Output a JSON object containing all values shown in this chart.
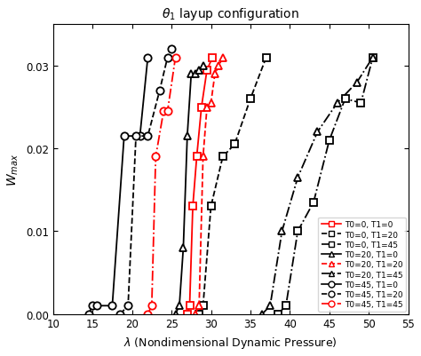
{
  "title": "$\\theta_1$ layup configuration",
  "xlabel": "$\\lambda$ (Nondimensional Dynamic Pressure)",
  "ylabel": "$W_{max}$",
  "xlim": [
    10,
    55
  ],
  "ylim": [
    0,
    0.035
  ],
  "xticks": [
    10,
    15,
    20,
    25,
    30,
    35,
    40,
    45,
    50,
    55
  ],
  "yticks": [
    0,
    0.01,
    0.02,
    0.03
  ],
  "series": [
    {
      "label": "T0=0, T1=0",
      "color": "red",
      "linestyle": "-",
      "marker": "s",
      "x": [
        27.0,
        27.3,
        27.7,
        28.2,
        28.8,
        29.5,
        30.2
      ],
      "y": [
        0.0,
        0.001,
        0.013,
        0.019,
        0.025,
        0.0295,
        0.031
      ]
    },
    {
      "label": "T0=0, T1=20",
      "color": "black",
      "linestyle": "--",
      "marker": "s",
      "x": [
        28.5,
        29.0,
        30.0,
        31.5,
        33.0,
        35.0,
        37.0
      ],
      "y": [
        0.0,
        0.001,
        0.013,
        0.019,
        0.0205,
        0.026,
        0.031
      ]
    },
    {
      "label": "T0=0, T1=45",
      "color": "black",
      "linestyle": "-.",
      "marker": "s",
      "x": [
        38.5,
        39.5,
        41.0,
        43.0,
        45.0,
        47.0,
        49.0,
        50.5
      ],
      "y": [
        0.0,
        0.001,
        0.01,
        0.0135,
        0.021,
        0.026,
        0.0255,
        0.031
      ]
    },
    {
      "label": "T0=20, T1=0",
      "color": "black",
      "linestyle": "-",
      "marker": "^",
      "x": [
        25.5,
        26.0,
        26.5,
        27.0,
        27.5,
        28.0,
        28.5,
        29.0
      ],
      "y": [
        0.0,
        0.001,
        0.008,
        0.0215,
        0.029,
        0.029,
        0.0295,
        0.03
      ]
    },
    {
      "label": "T0=20, T1=20",
      "color": "red",
      "linestyle": "--",
      "marker": "^",
      "x": [
        28.0,
        28.5,
        29.0,
        29.5,
        30.0,
        30.5,
        31.0,
        31.5
      ],
      "y": [
        0.0,
        0.001,
        0.019,
        0.025,
        0.0255,
        0.029,
        0.03,
        0.031
      ]
    },
    {
      "label": "T0=20, T1=45",
      "color": "black",
      "linestyle": "-.",
      "marker": "^",
      "x": [
        36.5,
        37.5,
        39.0,
        41.0,
        43.5,
        46.0,
        48.5,
        50.5
      ],
      "y": [
        0.0,
        0.001,
        0.01,
        0.0165,
        0.022,
        0.0255,
        0.028,
        0.031
      ]
    },
    {
      "label": "T0=45, T1=0",
      "color": "black",
      "linestyle": "-",
      "marker": "o",
      "x": [
        14.5,
        15.0,
        15.5,
        17.5,
        19.0,
        21.0,
        22.0
      ],
      "y": [
        0.0,
        0.001,
        0.001,
        0.001,
        0.0215,
        0.0215,
        0.031
      ]
    },
    {
      "label": "T0=45, T1=20",
      "color": "black",
      "linestyle": "--",
      "marker": "o",
      "x": [
        18.5,
        19.5,
        20.5,
        22.0,
        23.5,
        24.5,
        25.0
      ],
      "y": [
        0.0,
        0.001,
        0.0215,
        0.0215,
        0.027,
        0.031,
        0.032
      ]
    },
    {
      "label": "T0=45, T1=45",
      "color": "red",
      "linestyle": "-.",
      "marker": "o",
      "x": [
        22.0,
        22.5,
        23.0,
        24.0,
        24.5,
        25.5
      ],
      "y": [
        0.0,
        0.001,
        0.019,
        0.0245,
        0.0245,
        0.031
      ]
    }
  ],
  "legend_styles": [
    [
      "-",
      "s",
      "red",
      "T0=0, T1=0"
    ],
    [
      "--",
      "s",
      "black",
      "T0=0, T1=20"
    ],
    [
      "-.",
      "s",
      "black",
      "T0=0, T1=45"
    ],
    [
      "-",
      "^",
      "black",
      "T0=20, T1=0"
    ],
    [
      "--",
      "^",
      "red",
      "T0=20, T1=20"
    ],
    [
      "-.",
      "^",
      "black",
      "T0=20, T1=45"
    ],
    [
      "-",
      "o",
      "black",
      "T0=45, T1=0"
    ],
    [
      "--",
      "o",
      "black",
      "T0=45, T1=20"
    ],
    [
      "-.",
      "o",
      "red",
      "T0=45, T1=45"
    ]
  ]
}
